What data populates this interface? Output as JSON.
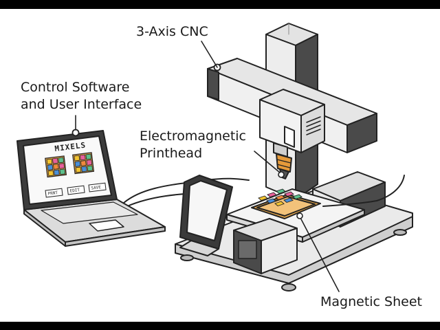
{
  "labels": {
    "cnc": "3-Axis CNC",
    "software_line1": "Control Software",
    "software_line2": "and User Interface",
    "printhead_line1": "Electromagnetic",
    "printhead_line2": "Printhead",
    "sheet": "Magnetic Sheet"
  },
  "laptop": {
    "screen_title": "MIXELS",
    "buttons": [
      "PRNT",
      "EDIT",
      "SAVE"
    ]
  },
  "colors": {
    "background": "#ffffff",
    "letterbox": "#000000",
    "frame_light": "#e9e9e9",
    "frame_dark": "#4a4a4a",
    "tile_yellow": "#f4c430",
    "tile_pink": "#e8609a",
    "tile_green": "#5cc08c",
    "tile_blue": "#4a8fd8",
    "tile_orange": "#f08a3c",
    "sheet_orange": "#e9a94b",
    "nozzle_orange": "#e69a3a"
  }
}
